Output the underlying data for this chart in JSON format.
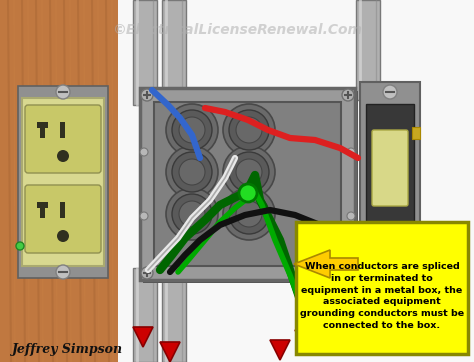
{
  "figsize": [
    4.74,
    3.62
  ],
  "dpi": 100,
  "bg_color": "#ffffff",
  "watermark": "©ElectricalLicenseRenewal.Com",
  "watermark_color": "#b0b0b0",
  "watermark_fontsize": 10,
  "author_text": "Jeffrey Simpson",
  "author_fontsize": 9,
  "annotation_text": "When conductors are spliced\nin or terminated to\nequipment in a metal box, the\nassociated equipment\ngrounding conductors must be\nconnected to the box.",
  "annotation_bg": "#ffff00",
  "annotation_border": "#cccc00",
  "annotation_fontsize": 6.8,
  "arrow_color": "#ffcc00",
  "wood_color": "#c07840",
  "wood_stripe": "#a06030",
  "box_outer": "#888888",
  "box_face": "#a0a0a0",
  "box_inner_face": "#909090",
  "conduit_color": "#b0b0b0",
  "conduit_edge": "#787878",
  "outlet_body": "#d8d890",
  "switch_bracket": "#909090",
  "switch_dark": "#383838",
  "switch_toggle": "#d8d888",
  "red_arrow_color": "#cc0000",
  "wire_white": "#e8e8e8",
  "wire_black": "#111111",
  "wire_blue": "#3366cc",
  "wire_red": "#dd2020",
  "wire_green_dark": "#006600",
  "wire_green_light": "#00aa00"
}
